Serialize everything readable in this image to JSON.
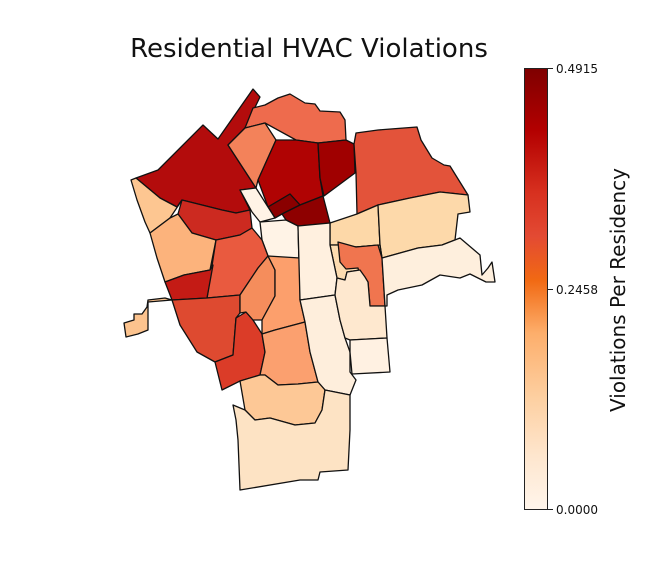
{
  "chart_data": {
    "type": "choropleth",
    "title": "Residential HVAC Violations",
    "colorbar": {
      "label": "Violations Per Residency",
      "min": 0.0,
      "max": 0.4915,
      "ticks": [
        "0.0000",
        "0.2458",
        "0.4915"
      ],
      "colormap": "OrRd",
      "colors": [
        "#fff5eb",
        "#fdd0a2",
        "#fdae6b",
        "#f16913",
        "#d7301f",
        "#b30000",
        "#7f0000"
      ]
    },
    "regions": [
      {
        "name": "northwest",
        "value": 0.44,
        "color": "#b30c0c"
      },
      {
        "name": "north-top",
        "value": 0.31,
        "color": "#ee6b4d"
      },
      {
        "name": "north-small-orange",
        "value": 0.28,
        "color": "#f3825a"
      },
      {
        "name": "north-central",
        "value": 0.45,
        "color": "#b00303"
      },
      {
        "name": "north-central-east",
        "value": 0.47,
        "color": "#a00000"
      },
      {
        "name": "northeast",
        "value": 0.36,
        "color": "#e3533a"
      },
      {
        "name": "center-dark-a",
        "value": 0.49,
        "color": "#8a0000"
      },
      {
        "name": "center-dark-b",
        "value": 0.49,
        "color": "#8e0000"
      },
      {
        "name": "center-white",
        "value": 0.01,
        "color": "#fff3e6"
      },
      {
        "name": "west-pale",
        "value": 0.17,
        "color": "#fdc691"
      },
      {
        "name": "west-red-band",
        "value": 0.41,
        "color": "#cc2a20"
      },
      {
        "name": "west-orange",
        "value": 0.2,
        "color": "#fcb37c"
      },
      {
        "name": "central-red-orange",
        "value": 0.33,
        "color": "#e95a3f"
      },
      {
        "name": "west-dark-red",
        "value": 0.42,
        "color": "#c41b15"
      },
      {
        "name": "west-tail",
        "value": 0.17,
        "color": "#fcc38e"
      },
      {
        "name": "southwest-red",
        "value": 0.37,
        "color": "#de4a30"
      },
      {
        "name": "south-red",
        "value": 0.38,
        "color": "#db3c28"
      },
      {
        "name": "central-orange-a",
        "value": 0.26,
        "color": "#f58d5c"
      },
      {
        "name": "central-orange-b",
        "value": 0.23,
        "color": "#fc9f6c"
      },
      {
        "name": "central-orange-c",
        "value": 0.23,
        "color": "#fba06f"
      },
      {
        "name": "east-pale-a",
        "value": 0.1,
        "color": "#fdd8a8"
      },
      {
        "name": "east-pale-b",
        "value": 0.1,
        "color": "#fdd9aa"
      },
      {
        "name": "east-pale-c",
        "value": 0.08,
        "color": "#fddcb0"
      },
      {
        "name": "east-orange",
        "value": 0.3,
        "color": "#f0754f"
      },
      {
        "name": "east-cream",
        "value": 0.03,
        "color": "#feefdd"
      },
      {
        "name": "center-cream-strip",
        "value": 0.02,
        "color": "#fff0df"
      },
      {
        "name": "center-cream-lower",
        "value": 0.03,
        "color": "#feeedc"
      },
      {
        "name": "east-cream-b",
        "value": 0.05,
        "color": "#fee8cf"
      },
      {
        "name": "east-cream-c",
        "value": 0.03,
        "color": "#fff1e2"
      },
      {
        "name": "south-pale",
        "value": 0.15,
        "color": "#fdc896"
      },
      {
        "name": "south-large",
        "value": 0.08,
        "color": "#fde3c4"
      }
    ]
  }
}
